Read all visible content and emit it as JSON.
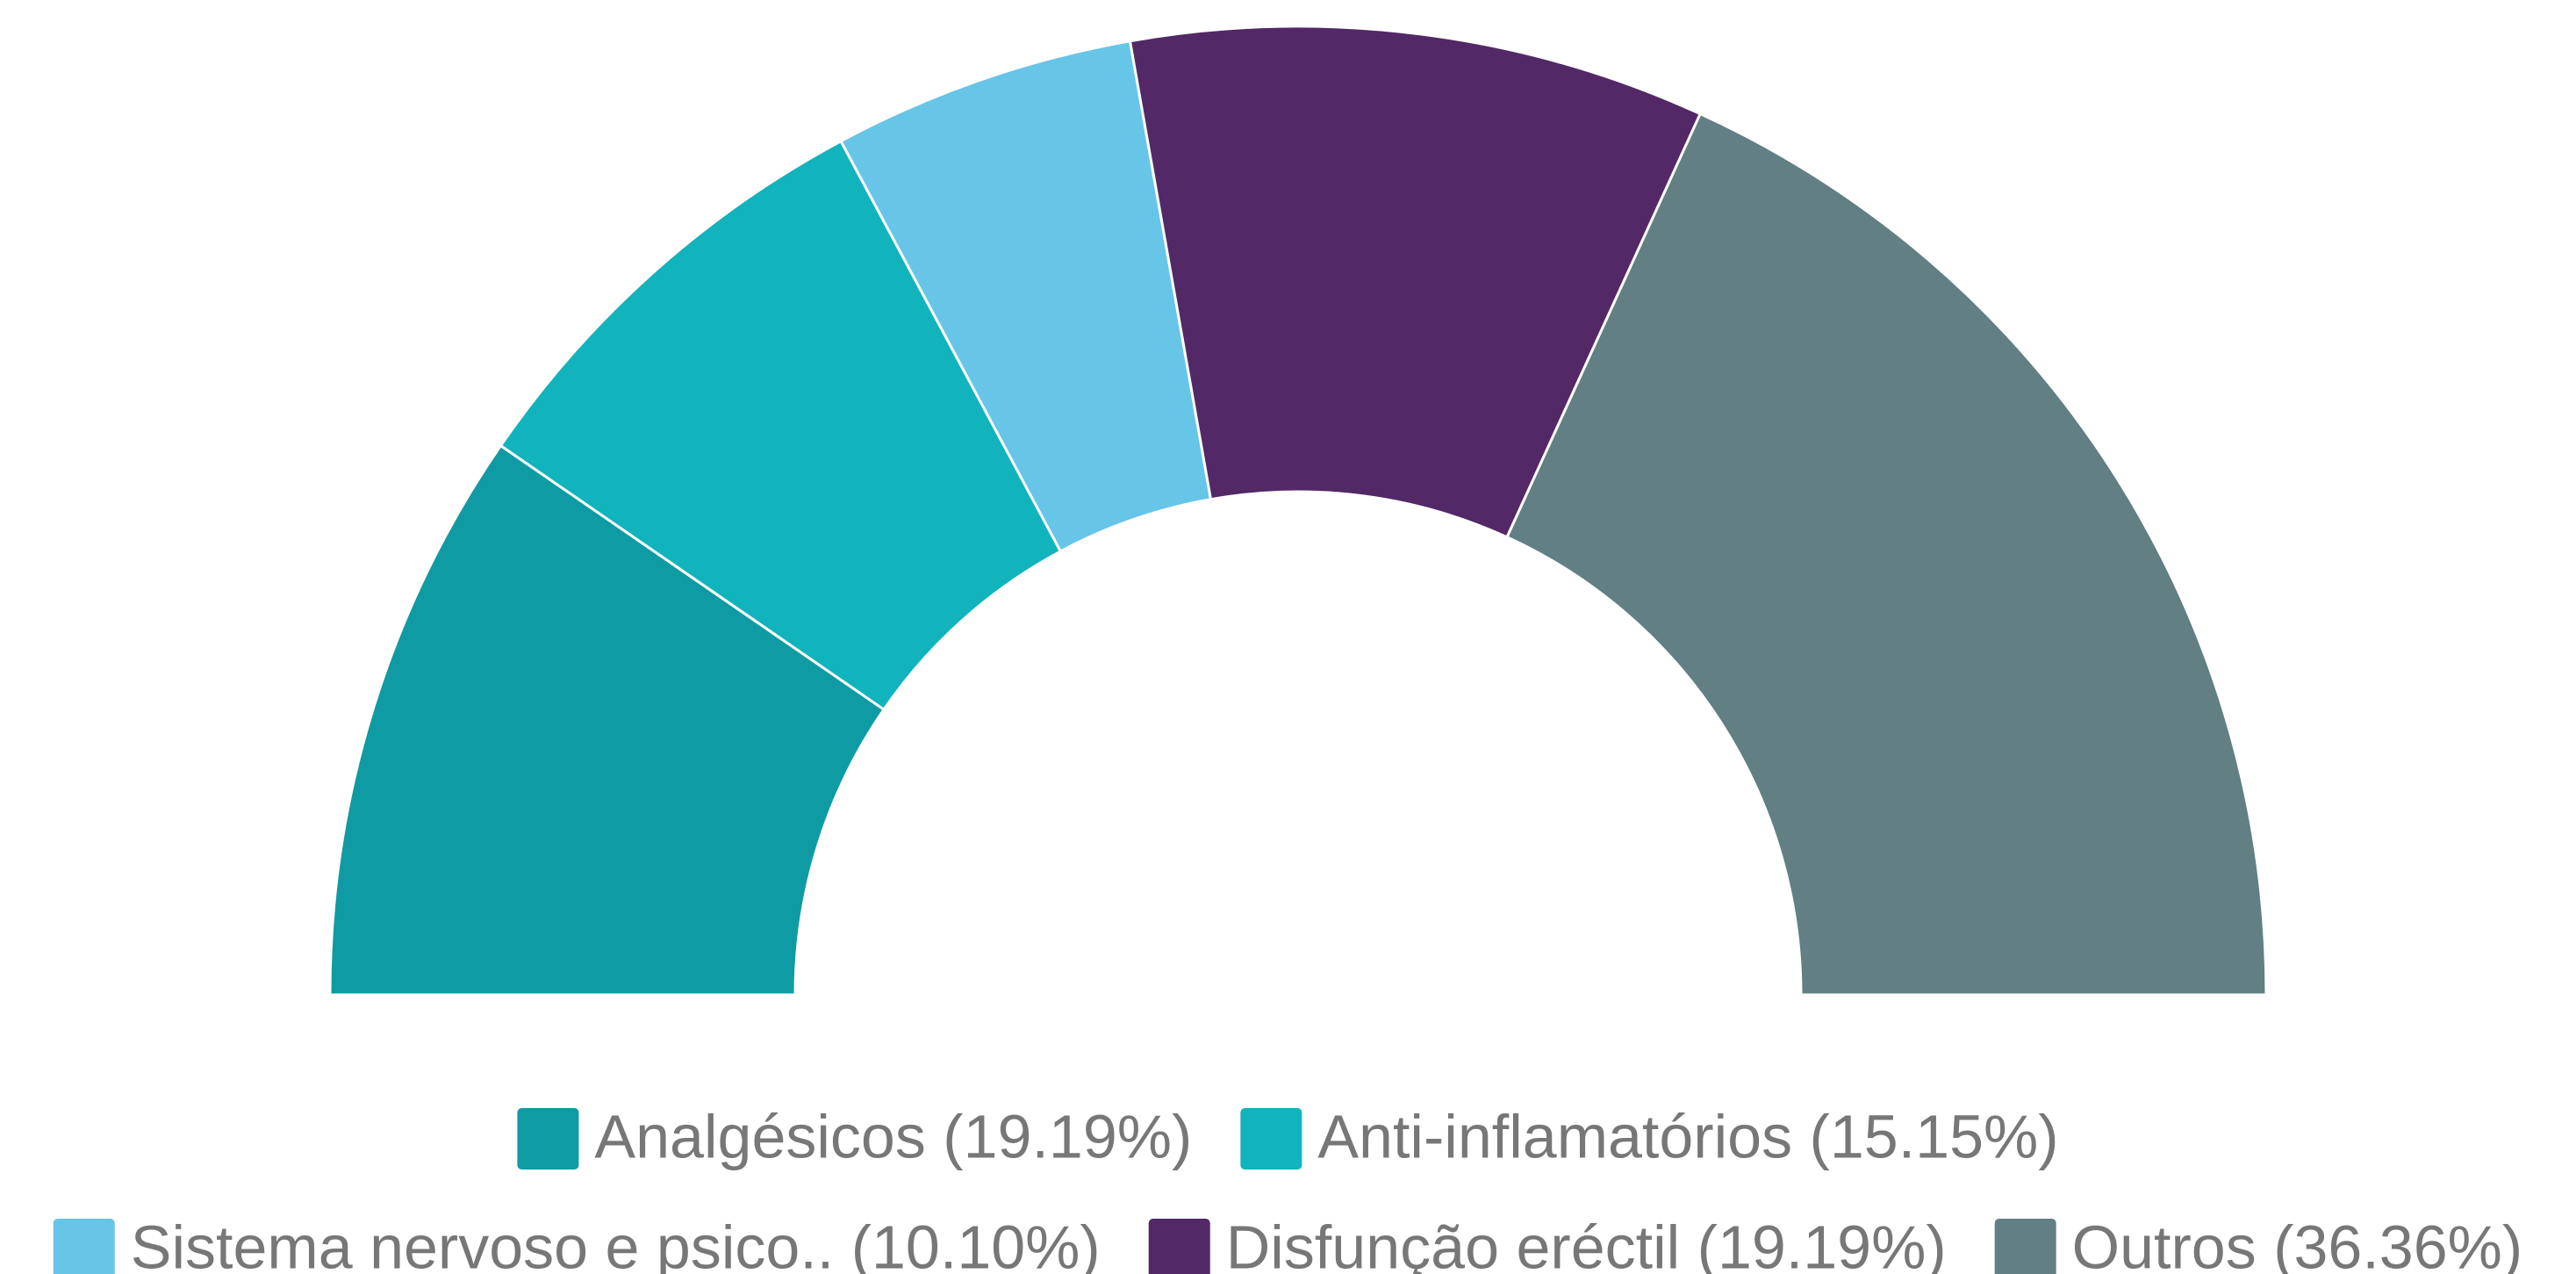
{
  "chart_data": {
    "type": "semi-donut",
    "categories": [
      "Analgésicos (19.19%)",
      "Anti-inflamatórios (15.15%)",
      "Sistema nervoso e psico.. (10.10%)",
      "Disfunção eréctil (19.19%)",
      "Outros (36.36%)"
    ],
    "values": [
      19.19,
      15.15,
      10.1,
      19.19,
      36.36
    ],
    "colors": [
      "#0f9ba3",
      "#11b3bc",
      "#67c5e8",
      "#522966",
      "#627f83"
    ],
    "legend": "bottom"
  }
}
